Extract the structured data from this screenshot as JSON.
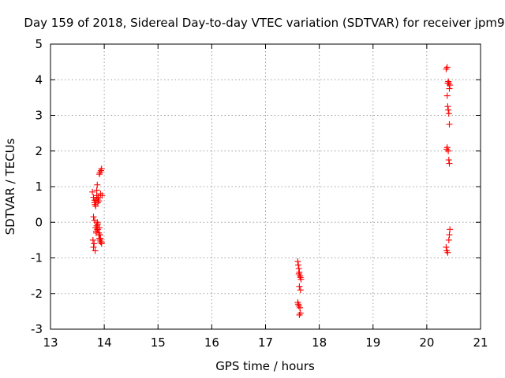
{
  "chart_data": {
    "type": "scatter",
    "title": "Day 159 of 2018, Sidereal Day-to-day VTEC variation (SDTVAR) for receiver jpm9",
    "xlabel": "GPS time / hours",
    "ylabel": "SDTVAR / TECUs",
    "xlim": [
      13,
      21
    ],
    "ylim": [
      -3,
      5
    ],
    "xticks": [
      13,
      14,
      15,
      16,
      17,
      18,
      19,
      20,
      21
    ],
    "yticks": [
      -3,
      -2,
      -1,
      0,
      1,
      2,
      3,
      4,
      5
    ],
    "grid": true,
    "marker": "+",
    "color": "#ff0000",
    "series": [
      {
        "name": "SDTVAR",
        "x": [
          13.78,
          13.8,
          13.82,
          13.83,
          13.84,
          13.85,
          13.86,
          13.86,
          13.87,
          13.88,
          13.88,
          13.89,
          13.9,
          13.91,
          13.92,
          13.93,
          13.94,
          13.95,
          13.96,
          13.8,
          13.82,
          13.84,
          13.85,
          13.86,
          13.87,
          13.88,
          13.9,
          13.91,
          13.92,
          13.93,
          13.95,
          13.79,
          13.8,
          13.81,
          13.83,
          13.85,
          13.87,
          13.88,
          13.9,
          13.91,
          13.92,
          13.93,
          13.95,
          13.82,
          17.6,
          17.61,
          17.62,
          17.63,
          17.64,
          17.65,
          17.66,
          17.62,
          17.63,
          17.65,
          17.6,
          17.61,
          17.62,
          17.64,
          17.65,
          17.63,
          20.36,
          20.38,
          20.39,
          20.4,
          20.41,
          20.42,
          20.43,
          20.38,
          20.39,
          20.4,
          20.41,
          20.42,
          20.37,
          20.38,
          20.4,
          20.41,
          20.42,
          20.36,
          20.37,
          20.39,
          20.41,
          20.42,
          20.43
        ],
        "y": [
          0.85,
          0.7,
          0.55,
          0.5,
          0.45,
          0.6,
          0.75,
          0.9,
          1.05,
          0.65,
          0.55,
          0.7,
          0.6,
          1.35,
          1.4,
          0.8,
          1.45,
          1.5,
          0.75,
          0.15,
          0.05,
          -0.15,
          -0.25,
          -0.1,
          0.0,
          -0.2,
          -0.3,
          -0.15,
          -0.35,
          -0.45,
          -0.55,
          -0.5,
          -0.7,
          -0.6,
          -0.8,
          -0.3,
          -0.2,
          -0.05,
          -0.35,
          -0.45,
          -0.5,
          -0.55,
          -0.6,
          0.62,
          -1.1,
          -1.2,
          -1.3,
          -1.4,
          -1.5,
          -1.55,
          -1.6,
          -1.45,
          -1.8,
          -1.9,
          -2.25,
          -2.3,
          -2.35,
          -2.4,
          -2.55,
          -2.6,
          4.3,
          4.35,
          3.9,
          3.95,
          3.9,
          3.75,
          3.85,
          3.55,
          3.25,
          3.15,
          3.05,
          2.75,
          2.05,
          2.1,
          2.0,
          1.75,
          1.65,
          -0.7,
          -0.8,
          -0.85,
          -0.5,
          -0.35,
          -0.2
        ]
      }
    ]
  }
}
